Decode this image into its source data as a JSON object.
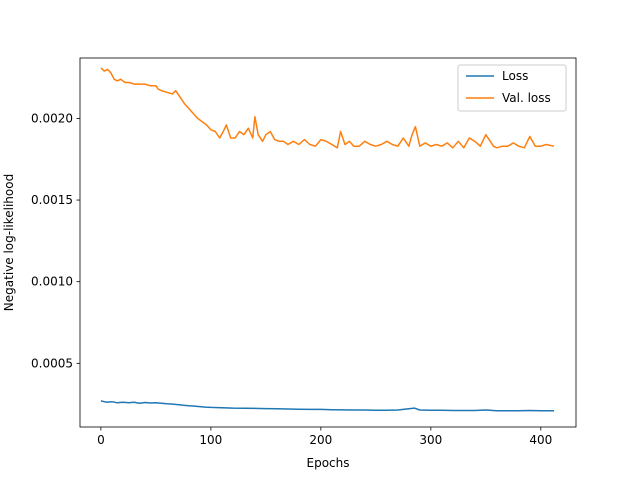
{
  "chart_data": {
    "type": "line",
    "title": "",
    "xlabel": "Epochs",
    "ylabel": "Negative log-likelihood",
    "xlim": [
      -19,
      432
    ],
    "ylim": [
      0.00011,
      0.00237
    ],
    "xticks": [
      0,
      100,
      200,
      300,
      400
    ],
    "yticks": [
      0.0005,
      0.001,
      0.0015,
      0.002
    ],
    "xtick_labels": [
      "0",
      "100",
      "200",
      "300",
      "400"
    ],
    "ytick_labels": [
      "0.0005",
      "0.0010",
      "0.0015",
      "0.0020"
    ],
    "grid": false,
    "legend_position": "top-right",
    "series": [
      {
        "name": "Loss",
        "color": "#1f77b4",
        "x": [
          0,
          5,
          10,
          15,
          20,
          25,
          30,
          35,
          40,
          45,
          50,
          55,
          60,
          65,
          70,
          75,
          80,
          85,
          90,
          95,
          100,
          110,
          120,
          130,
          140,
          150,
          160,
          170,
          180,
          190,
          200,
          210,
          220,
          230,
          240,
          250,
          260,
          270,
          280,
          285,
          290,
          300,
          310,
          320,
          330,
          340,
          350,
          360,
          370,
          380,
          390,
          400,
          412
        ],
        "y": [
          0.00027,
          0.000262,
          0.000265,
          0.000258,
          0.000262,
          0.000259,
          0.000261,
          0.000256,
          0.00026,
          0.000257,
          0.000258,
          0.000255,
          0.000252,
          0.00025,
          0.000247,
          0.000243,
          0.00024,
          0.000238,
          0.000235,
          0.000232,
          0.00023,
          0.000228,
          0.000226,
          0.000225,
          0.000224,
          0.000223,
          0.000222,
          0.00022,
          0.000219,
          0.000218,
          0.000218,
          0.000216,
          0.000215,
          0.000214,
          0.000214,
          0.000213,
          0.000213,
          0.000214,
          0.000222,
          0.000226,
          0.000214,
          0.000212,
          0.000212,
          0.000211,
          0.000211,
          0.000211,
          0.000214,
          0.00021,
          0.000209,
          0.000209,
          0.000211,
          0.000209,
          0.000209
        ]
      },
      {
        "name": "Val. loss",
        "color": "#ff7f0e",
        "x": [
          0,
          3,
          6,
          9,
          12,
          15,
          18,
          22,
          26,
          30,
          35,
          40,
          45,
          50,
          52,
          55,
          60,
          65,
          68,
          72,
          76,
          80,
          84,
          88,
          92,
          96,
          100,
          104,
          108,
          112,
          114,
          118,
          122,
          126,
          130,
          134,
          138,
          140,
          143,
          147,
          150,
          154,
          158,
          162,
          166,
          170,
          175,
          180,
          185,
          190,
          195,
          200,
          205,
          210,
          215,
          218,
          222,
          226,
          230,
          235,
          240,
          245,
          250,
          255,
          260,
          265,
          270,
          275,
          280,
          283,
          286,
          290,
          295,
          300,
          305,
          310,
          315,
          320,
          325,
          330,
          335,
          340,
          345,
          350,
          353,
          357,
          360,
          365,
          370,
          375,
          380,
          385,
          390,
          395,
          400,
          405,
          412
        ],
        "y": [
          0.00231,
          0.00229,
          0.0023,
          0.00228,
          0.00224,
          0.00223,
          0.00224,
          0.00222,
          0.00222,
          0.00221,
          0.00221,
          0.00221,
          0.0022,
          0.0022,
          0.00218,
          0.00217,
          0.00216,
          0.00215,
          0.00217,
          0.00213,
          0.00209,
          0.00206,
          0.00203,
          0.002,
          0.00198,
          0.00196,
          0.00193,
          0.00192,
          0.00188,
          0.00193,
          0.00196,
          0.00188,
          0.00188,
          0.00192,
          0.0019,
          0.00194,
          0.00188,
          0.00201,
          0.0019,
          0.00186,
          0.0019,
          0.00192,
          0.00187,
          0.00186,
          0.00186,
          0.00184,
          0.00186,
          0.00184,
          0.00187,
          0.00184,
          0.00183,
          0.00187,
          0.00186,
          0.00184,
          0.00182,
          0.00192,
          0.00184,
          0.00186,
          0.00183,
          0.00183,
          0.00186,
          0.00184,
          0.00183,
          0.00184,
          0.00186,
          0.00184,
          0.00183,
          0.00188,
          0.00183,
          0.0019,
          0.00195,
          0.00183,
          0.00185,
          0.00183,
          0.00184,
          0.00183,
          0.00185,
          0.00182,
          0.00186,
          0.00182,
          0.00188,
          0.00186,
          0.00183,
          0.0019,
          0.00187,
          0.00183,
          0.00182,
          0.00183,
          0.00183,
          0.00185,
          0.00183,
          0.00182,
          0.00189,
          0.00183,
          0.00183,
          0.00184,
          0.00183
        ]
      }
    ]
  }
}
